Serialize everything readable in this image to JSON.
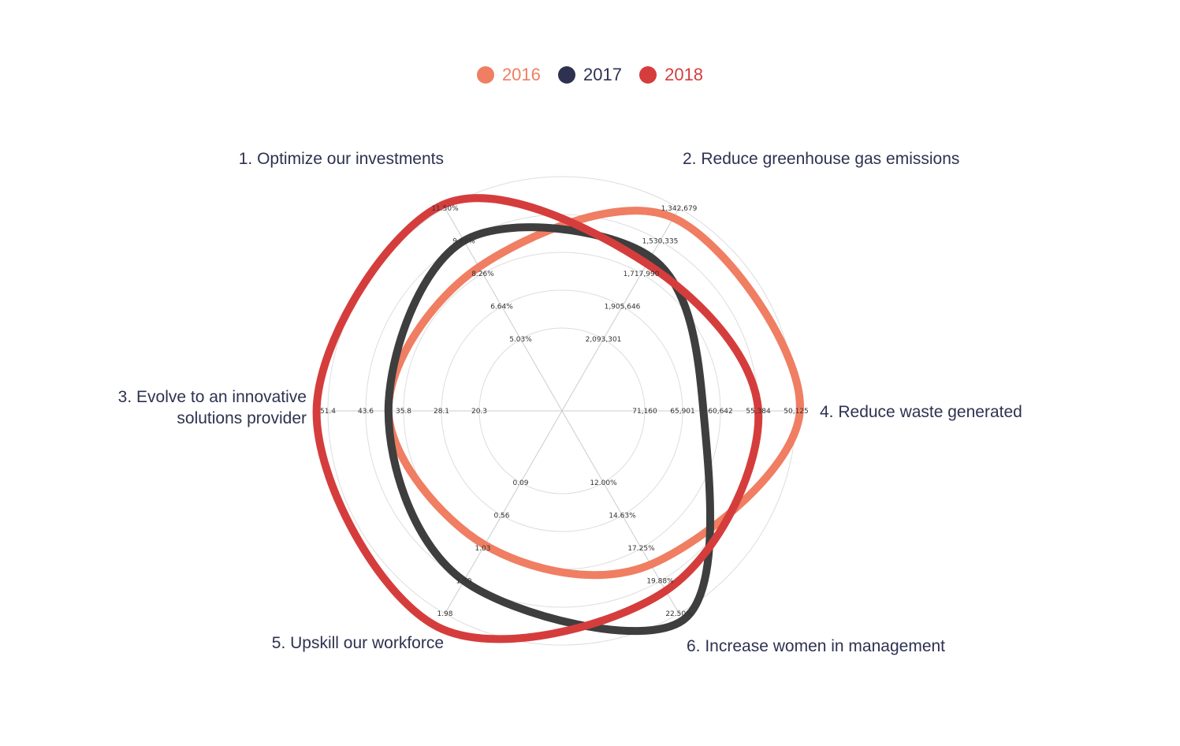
{
  "legend": [
    {
      "label": "2016",
      "color": "#f07e62"
    },
    {
      "label": "2017",
      "color": "#2e3250"
    },
    {
      "label": "2018",
      "color": "#d53d3d"
    }
  ],
  "chart_data": {
    "type": "radar",
    "line_shape": "spline",
    "grid": true,
    "legend_position": "top-center",
    "axes": [
      {
        "title": "1. Optimize our investments",
        "ticks": [
          "5.03%",
          "6.64%",
          "8.26%",
          "9.88%",
          "11.50%"
        ]
      },
      {
        "title": "2. Reduce greenhouse gas emissions",
        "ticks": [
          "2,093,301",
          "1,905,646",
          "1,717,990",
          "1,530,335",
          "1,342,679"
        ]
      },
      {
        "title": "4. Reduce waste generated",
        "ticks": [
          "71,160",
          "65,901",
          "60,642",
          "55,384",
          "50,125"
        ]
      },
      {
        "title": "6. Increase women in management",
        "ticks": [
          "12.00%",
          "14.63%",
          "17.25%",
          "19.88%",
          "22.50%"
        ]
      },
      {
        "title": "5. Upskill our workforce",
        "ticks": [
          "0.09",
          "0.56",
          "1.03",
          "1.50",
          "1.98"
        ]
      },
      {
        "title": "3. Evolve to an innovative solutions provider",
        "ticks": [
          "20.3",
          "28.1",
          "35.8",
          "43.6",
          "51.4"
        ]
      }
    ],
    "series": [
      {
        "name": "2016",
        "color": "#f07e62",
        "values": [
          2.2,
          3.7,
          4.1,
          2.5,
          1.9,
          2.4
        ]
      },
      {
        "name": "2017",
        "color": "#3e3e3e",
        "values": [
          3.0,
          2.5,
          1.55,
          4.2,
          3.0,
          2.4
        ]
      },
      {
        "name": "2018",
        "color": "#d53d3d",
        "values": [
          4.1,
          2.3,
          3.0,
          3.3,
          4.4,
          4.3
        ]
      }
    ]
  }
}
